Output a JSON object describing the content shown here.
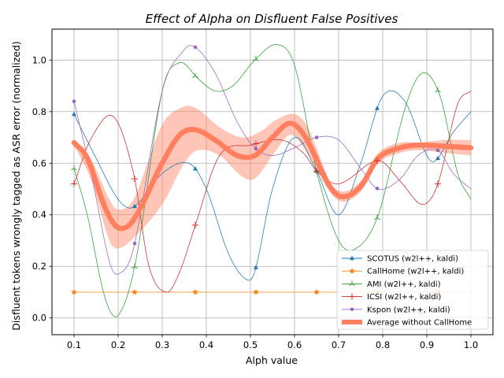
{
  "chart_data": {
    "type": "line",
    "title": "Effect of Alpha on Disfluent False Positives",
    "xlabel": "Alph value",
    "ylabel": "Disfluent tokens wrongly tagged as ASR error (normalized)",
    "xlim": [
      0.05,
      1.05
    ],
    "ylim": [
      -0.065,
      1.12
    ],
    "xticks": [
      0.1,
      0.2,
      0.3,
      0.4,
      0.5,
      0.6,
      0.7,
      0.8,
      0.9,
      1.0
    ],
    "xtick_labels": [
      "0.1",
      "0.2",
      "0.3",
      "0.4",
      "0.5",
      "0.6",
      "0.7",
      "0.8",
      "0.9",
      "1.0"
    ],
    "yticks": [
      0.0,
      0.2,
      0.4,
      0.6,
      0.8,
      1.0
    ],
    "ytick_labels": [
      "0.0",
      "0.2",
      "0.4",
      "0.6",
      "0.8",
      "1.0"
    ],
    "grid": true,
    "legend_position": "lower right",
    "marker_x": [
      0.1,
      0.2375,
      0.375,
      0.5125,
      0.65,
      0.7875,
      0.925
    ],
    "series": [
      {
        "name": "SCOTUS (w2l++, kaldi)",
        "color": "#1f77b4",
        "marker": "triangle",
        "curve": [
          [
            0.1,
            0.79
          ],
          [
            0.15,
            0.62
          ],
          [
            0.2,
            0.46
          ],
          [
            0.235,
            0.43
          ],
          [
            0.3,
            0.56
          ],
          [
            0.36,
            0.6
          ],
          [
            0.4,
            0.5
          ],
          [
            0.45,
            0.25
          ],
          [
            0.49,
            0.15
          ],
          [
            0.51,
            0.18
          ],
          [
            0.55,
            0.5
          ],
          [
            0.6,
            0.7
          ],
          [
            0.65,
            0.57
          ],
          [
            0.7,
            0.4
          ],
          [
            0.75,
            0.6
          ],
          [
            0.8,
            0.86
          ],
          [
            0.85,
            0.84
          ],
          [
            0.9,
            0.63
          ],
          [
            0.92,
            0.61
          ],
          [
            0.96,
            0.72
          ],
          [
            1.0,
            0.8
          ]
        ]
      },
      {
        "name": "CallHome (w2l++, kaldi)",
        "color": "#ff7f0e",
        "marker": "star",
        "curve": [
          [
            0.1,
            0.1
          ],
          [
            1.0,
            0.1
          ]
        ]
      },
      {
        "name": "AMI (w2l++, kaldi)",
        "color": "#2ca02c",
        "marker": "tri-down",
        "curve": [
          [
            0.1,
            0.58
          ],
          [
            0.13,
            0.4
          ],
          [
            0.17,
            0.08
          ],
          [
            0.2,
            0.01
          ],
          [
            0.24,
            0.22
          ],
          [
            0.3,
            0.88
          ],
          [
            0.34,
            0.99
          ],
          [
            0.38,
            0.93
          ],
          [
            0.42,
            0.88
          ],
          [
            0.46,
            0.9
          ],
          [
            0.51,
            1.0
          ],
          [
            0.56,
            1.06
          ],
          [
            0.6,
            0.98
          ],
          [
            0.65,
            0.57
          ],
          [
            0.7,
            0.3
          ],
          [
            0.74,
            0.27
          ],
          [
            0.79,
            0.4
          ],
          [
            0.85,
            0.81
          ],
          [
            0.89,
            0.95
          ],
          [
            0.93,
            0.86
          ],
          [
            0.97,
            0.56
          ],
          [
            1.0,
            0.46
          ]
        ]
      },
      {
        "name": "ICSI (w2l++, kaldi)",
        "color": "#d62728",
        "marker": "plus",
        "curve": [
          [
            0.1,
            0.52
          ],
          [
            0.14,
            0.7
          ],
          [
            0.19,
            0.78
          ],
          [
            0.235,
            0.56
          ],
          [
            0.27,
            0.2
          ],
          [
            0.31,
            0.1
          ],
          [
            0.34,
            0.18
          ],
          [
            0.375,
            0.36
          ],
          [
            0.43,
            0.63
          ],
          [
            0.5,
            0.67
          ],
          [
            0.57,
            0.69
          ],
          [
            0.62,
            0.64
          ],
          [
            0.65,
            0.57
          ],
          [
            0.7,
            0.52
          ],
          [
            0.79,
            0.61
          ],
          [
            0.84,
            0.53
          ],
          [
            0.89,
            0.44
          ],
          [
            0.925,
            0.52
          ],
          [
            0.97,
            0.83
          ],
          [
            1.0,
            0.88
          ]
        ]
      },
      {
        "name": "Kspon (w2l++, kaldi)",
        "color": "#9467bd",
        "marker": "dot",
        "curve": [
          [
            0.1,
            0.84
          ],
          [
            0.14,
            0.55
          ],
          [
            0.18,
            0.22
          ],
          [
            0.2,
            0.17
          ],
          [
            0.235,
            0.27
          ],
          [
            0.3,
            0.88
          ],
          [
            0.35,
            1.04
          ],
          [
            0.375,
            1.05
          ],
          [
            0.42,
            0.95
          ],
          [
            0.47,
            0.76
          ],
          [
            0.51,
            0.66
          ],
          [
            0.55,
            0.63
          ],
          [
            0.6,
            0.66
          ],
          [
            0.65,
            0.7
          ],
          [
            0.7,
            0.69
          ],
          [
            0.75,
            0.58
          ],
          [
            0.79,
            0.5
          ],
          [
            0.84,
            0.54
          ],
          [
            0.88,
            0.63
          ],
          [
            0.925,
            0.65
          ],
          [
            0.96,
            0.56
          ],
          [
            1.0,
            0.5
          ]
        ]
      },
      {
        "name": "Average without CallHome",
        "color": "#ff7f5e",
        "marker": "none",
        "curve": [
          [
            0.1,
            0.68
          ],
          [
            0.13,
            0.62
          ],
          [
            0.17,
            0.43
          ],
          [
            0.2,
            0.35
          ],
          [
            0.235,
            0.38
          ],
          [
            0.3,
            0.6
          ],
          [
            0.34,
            0.71
          ],
          [
            0.375,
            0.73
          ],
          [
            0.42,
            0.69
          ],
          [
            0.47,
            0.63
          ],
          [
            0.51,
            0.63
          ],
          [
            0.55,
            0.7
          ],
          [
            0.59,
            0.755
          ],
          [
            0.625,
            0.7
          ],
          [
            0.68,
            0.51
          ],
          [
            0.71,
            0.47
          ],
          [
            0.75,
            0.51
          ],
          [
            0.79,
            0.62
          ],
          [
            0.84,
            0.66
          ],
          [
            0.88,
            0.67
          ],
          [
            0.95,
            0.665
          ],
          [
            1.0,
            0.66
          ]
        ],
        "band_upper": [
          [
            0.1,
            0.69
          ],
          [
            0.14,
            0.61
          ],
          [
            0.18,
            0.46
          ],
          [
            0.2,
            0.42
          ],
          [
            0.235,
            0.46
          ],
          [
            0.3,
            0.75
          ],
          [
            0.35,
            0.82
          ],
          [
            0.38,
            0.81
          ],
          [
            0.43,
            0.74
          ],
          [
            0.48,
            0.7
          ],
          [
            0.52,
            0.72
          ],
          [
            0.56,
            0.77
          ],
          [
            0.6,
            0.79
          ],
          [
            0.63,
            0.74
          ],
          [
            0.68,
            0.53
          ],
          [
            0.71,
            0.49
          ],
          [
            0.75,
            0.53
          ],
          [
            0.79,
            0.64
          ],
          [
            0.84,
            0.68
          ],
          [
            0.88,
            0.68
          ],
          [
            0.94,
            0.69
          ],
          [
            1.0,
            0.69
          ]
        ],
        "band_lower": [
          [
            0.1,
            0.67
          ],
          [
            0.14,
            0.53
          ],
          [
            0.18,
            0.3
          ],
          [
            0.2,
            0.27
          ],
          [
            0.235,
            0.31
          ],
          [
            0.3,
            0.44
          ],
          [
            0.35,
            0.6
          ],
          [
            0.38,
            0.65
          ],
          [
            0.43,
            0.63
          ],
          [
            0.48,
            0.55
          ],
          [
            0.51,
            0.54
          ],
          [
            0.55,
            0.63
          ],
          [
            0.59,
            0.71
          ],
          [
            0.62,
            0.66
          ],
          [
            0.68,
            0.49
          ],
          [
            0.71,
            0.45
          ],
          [
            0.75,
            0.49
          ],
          [
            0.79,
            0.6
          ],
          [
            0.84,
            0.64
          ],
          [
            0.88,
            0.65
          ],
          [
            0.94,
            0.64
          ],
          [
            1.0,
            0.63
          ]
        ]
      }
    ]
  }
}
